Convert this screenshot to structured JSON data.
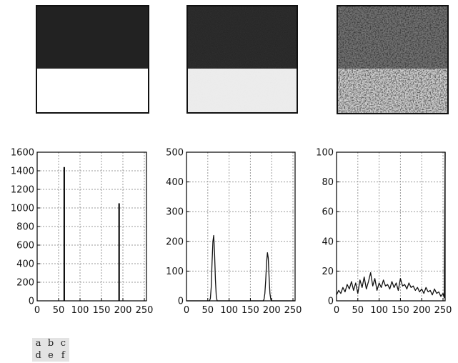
{
  "panel_labels": [
    "a",
    "b",
    "c",
    "d",
    "e",
    "f"
  ],
  "colors": {
    "image_dark": "#222222",
    "image_light_a": "#ffffff",
    "image_light_b": "#eeeeee",
    "axis": "#000000",
    "grid": "#9a9a9a",
    "series_line": "#111111",
    "legend_bg": "#e3e3e3"
  },
  "images": [
    {
      "name": "image-a",
      "top_gray_level": 63,
      "bottom_gray_level": 191,
      "noise": "none"
    },
    {
      "name": "image-b",
      "top_gray_level": 63,
      "bottom_gray_level": 191,
      "noise": "low"
    },
    {
      "name": "image-c",
      "top_gray_level": 63,
      "bottom_gray_level": 191,
      "noise": "high"
    }
  ],
  "chart_data": [
    {
      "type": "bar",
      "title": "",
      "xlabel": "",
      "ylabel": "",
      "xlim": [
        0,
        255
      ],
      "ylim": [
        0,
        1600
      ],
      "xticks": [
        0,
        50,
        100,
        150,
        200,
        250
      ],
      "yticks": [
        0,
        200,
        400,
        600,
        800,
        1000,
        1200,
        1400,
        1600
      ],
      "grid": true,
      "spikes": [
        {
          "x": 63,
          "y": 1440
        },
        {
          "x": 191,
          "y": 1050
        }
      ]
    },
    {
      "type": "line",
      "title": "",
      "xlabel": "",
      "ylabel": "",
      "xlim": [
        0,
        255
      ],
      "ylim": [
        0,
        500
      ],
      "xticks": [
        0,
        50,
        100,
        150,
        200,
        250
      ],
      "yticks": [
        0,
        100,
        200,
        300,
        400,
        500
      ],
      "grid": true,
      "x": [
        0,
        54,
        56,
        58,
        60,
        62,
        64,
        66,
        68,
        70,
        72,
        180,
        182,
        184,
        186,
        188,
        190,
        192,
        194,
        196,
        198,
        200,
        255
      ],
      "y": [
        0,
        0,
        8,
        45,
        130,
        200,
        220,
        160,
        70,
        15,
        0,
        0,
        5,
        25,
        70,
        130,
        162,
        145,
        80,
        25,
        5,
        0,
        0
      ]
    },
    {
      "type": "line",
      "title": "",
      "xlabel": "",
      "ylabel": "",
      "xlim": [
        0,
        255
      ],
      "ylim": [
        0,
        100
      ],
      "xticks": [
        0,
        50,
        100,
        150,
        200,
        250
      ],
      "yticks": [
        0,
        20,
        40,
        60,
        80,
        100
      ],
      "grid": true,
      "x": [
        0,
        5,
        10,
        15,
        20,
        25,
        30,
        35,
        40,
        45,
        50,
        55,
        60,
        65,
        70,
        75,
        80,
        85,
        90,
        95,
        100,
        105,
        110,
        115,
        120,
        125,
        130,
        135,
        140,
        145,
        150,
        155,
        160,
        165,
        170,
        175,
        180,
        185,
        190,
        195,
        200,
        205,
        210,
        215,
        220,
        225,
        230,
        235,
        240,
        245,
        250,
        253,
        255
      ],
      "y": [
        4,
        7,
        5,
        9,
        6,
        11,
        8,
        13,
        7,
        12,
        5,
        14,
        9,
        16,
        8,
        13,
        19,
        10,
        15,
        7,
        12,
        9,
        14,
        10,
        11,
        8,
        13,
        9,
        12,
        7,
        15,
        10,
        11,
        8,
        12,
        9,
        10,
        7,
        9,
        6,
        8,
        5,
        9,
        6,
        7,
        4,
        8,
        5,
        6,
        3,
        5,
        2,
        100
      ]
    }
  ]
}
